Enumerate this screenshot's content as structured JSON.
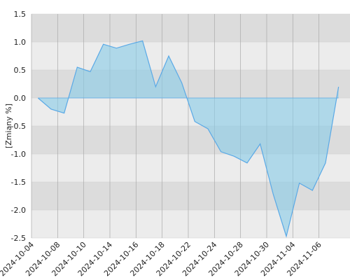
{
  "chart_data": {
    "type": "area",
    "y_label": "[Zmiany %]",
    "categories": [
      "2024-10-04",
      null,
      "2024-10-08",
      null,
      "2024-10-10",
      null,
      "2024-10-14",
      null,
      "2024-10-16",
      null,
      "2024-10-18",
      null,
      "2024-10-22",
      null,
      "2024-10-24",
      null,
      "2024-10-28",
      null,
      "2024-10-30",
      null,
      "2024-11-04",
      null,
      "2024-11-06",
      null
    ],
    "values": [
      0,
      -0.2,
      -0.27,
      0.55,
      0.47,
      0.96,
      0.89,
      0.96,
      1.02,
      0.2,
      0.75,
      0.27,
      -0.42,
      -0.55,
      -0.96,
      -1.04,
      -1.16,
      -0.82,
      -1.72,
      -2.47,
      -1.52,
      -1.65,
      -1.16,
      0.2
    ],
    "color": "#5aa9e6",
    "fill": "#87cce8",
    "ylim": [
      -2.5,
      1.5
    ],
    "yticks": [
      1.5,
      {
        "value": 1,
        "label": "1.0"
      },
      0.5,
      {
        "value": 0,
        "label": "0.0"
      },
      -0.5,
      {
        "value": -1,
        "label": "-1.0"
      },
      -1.5,
      {
        "value": -2,
        "label": "-2.0"
      },
      -2.5
    ],
    "grid": true
  }
}
